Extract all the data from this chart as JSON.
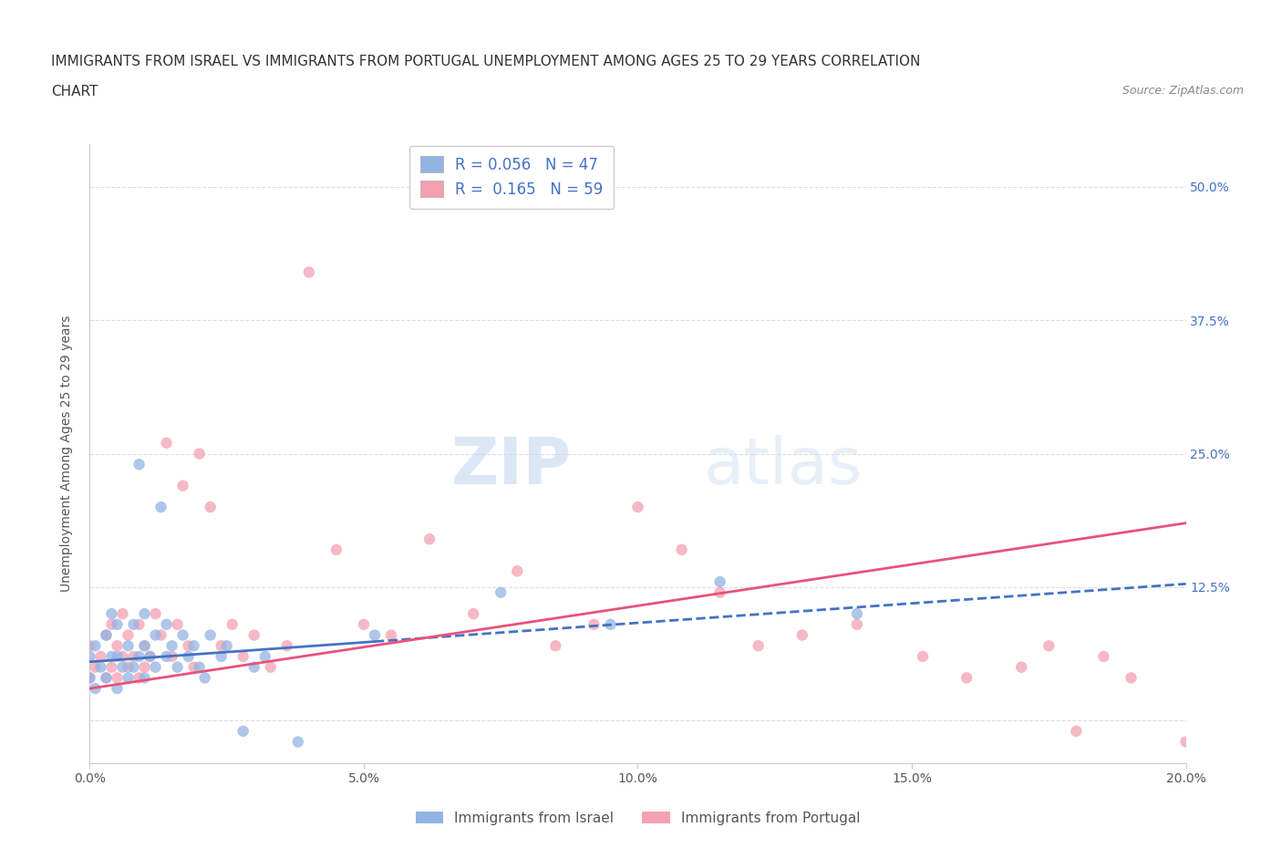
{
  "title_line1": "IMMIGRANTS FROM ISRAEL VS IMMIGRANTS FROM PORTUGAL UNEMPLOYMENT AMONG AGES 25 TO 29 YEARS CORRELATION",
  "title_line2": "CHART",
  "source_text": "Source: ZipAtlas.com",
  "ylabel": "Unemployment Among Ages 25 to 29 years",
  "xlim": [
    0.0,
    0.2
  ],
  "ylim": [
    -0.04,
    0.54
  ],
  "xtick_labels": [
    "0.0%",
    "5.0%",
    "10.0%",
    "15.0%",
    "20.0%"
  ],
  "xtick_vals": [
    0.0,
    0.05,
    0.1,
    0.15,
    0.2
  ],
  "ytick_vals": [
    0.0,
    0.125,
    0.25,
    0.375,
    0.5
  ],
  "R_israel": 0.056,
  "N_israel": 47,
  "R_portugal": 0.165,
  "N_portugal": 59,
  "israel_color": "#92B4E3",
  "portugal_color": "#F4A0B0",
  "israel_line_color": "#4472C4",
  "portugal_line_color": "#E8527A",
  "legend_label_israel": "Immigrants from Israel",
  "legend_label_portugal": "Immigrants from Portugal",
  "watermark_zip": "ZIP",
  "watermark_atlas": "atlas",
  "background_color": "#ffffff",
  "grid_color": "#dddddd",
  "title_color": "#333333",
  "axis_label_color": "#555555",
  "tick_color": "#555555",
  "right_tick_color": "#4472C4",
  "israel_line_start_y": 0.055,
  "israel_line_end_y": 0.128,
  "portugal_line_start_y": 0.03,
  "portugal_line_end_y": 0.185,
  "scatter_israel_x": [
    0.0,
    0.0,
    0.001,
    0.001,
    0.002,
    0.003,
    0.003,
    0.004,
    0.004,
    0.005,
    0.005,
    0.005,
    0.006,
    0.007,
    0.007,
    0.008,
    0.008,
    0.009,
    0.009,
    0.01,
    0.01,
    0.01,
    0.011,
    0.012,
    0.012,
    0.013,
    0.014,
    0.014,
    0.015,
    0.016,
    0.017,
    0.018,
    0.019,
    0.02,
    0.021,
    0.022,
    0.024,
    0.025,
    0.028,
    0.03,
    0.032,
    0.038,
    0.052,
    0.075,
    0.095,
    0.115,
    0.14
  ],
  "scatter_israel_y": [
    0.04,
    0.06,
    0.03,
    0.07,
    0.05,
    0.08,
    0.04,
    0.06,
    0.1,
    0.03,
    0.06,
    0.09,
    0.05,
    0.04,
    0.07,
    0.05,
    0.09,
    0.06,
    0.24,
    0.04,
    0.07,
    0.1,
    0.06,
    0.05,
    0.08,
    0.2,
    0.06,
    0.09,
    0.07,
    0.05,
    0.08,
    0.06,
    0.07,
    0.05,
    0.04,
    0.08,
    0.06,
    0.07,
    -0.01,
    0.05,
    0.06,
    -0.02,
    0.08,
    0.12,
    0.09,
    0.13,
    0.1
  ],
  "scatter_portugal_x": [
    0.0,
    0.0,
    0.001,
    0.002,
    0.003,
    0.003,
    0.004,
    0.004,
    0.005,
    0.005,
    0.006,
    0.006,
    0.007,
    0.007,
    0.008,
    0.009,
    0.009,
    0.01,
    0.01,
    0.011,
    0.012,
    0.013,
    0.014,
    0.015,
    0.016,
    0.017,
    0.018,
    0.019,
    0.02,
    0.022,
    0.024,
    0.026,
    0.028,
    0.03,
    0.033,
    0.036,
    0.04,
    0.045,
    0.05,
    0.055,
    0.062,
    0.07,
    0.078,
    0.085,
    0.092,
    0.1,
    0.108,
    0.115,
    0.122,
    0.13,
    0.14,
    0.152,
    0.16,
    0.17,
    0.175,
    0.18,
    0.185,
    0.19,
    0.2
  ],
  "scatter_portugal_y": [
    0.04,
    0.07,
    0.05,
    0.06,
    0.08,
    0.04,
    0.05,
    0.09,
    0.04,
    0.07,
    0.06,
    0.1,
    0.05,
    0.08,
    0.06,
    0.04,
    0.09,
    0.05,
    0.07,
    0.06,
    0.1,
    0.08,
    0.26,
    0.06,
    0.09,
    0.22,
    0.07,
    0.05,
    0.25,
    0.2,
    0.07,
    0.09,
    0.06,
    0.08,
    0.05,
    0.07,
    0.42,
    0.16,
    0.09,
    0.08,
    0.17,
    0.1,
    0.14,
    0.07,
    0.09,
    0.2,
    0.16,
    0.12,
    0.07,
    0.08,
    0.09,
    0.06,
    0.04,
    0.05,
    0.07,
    -0.01,
    0.06,
    0.04,
    -0.02
  ]
}
